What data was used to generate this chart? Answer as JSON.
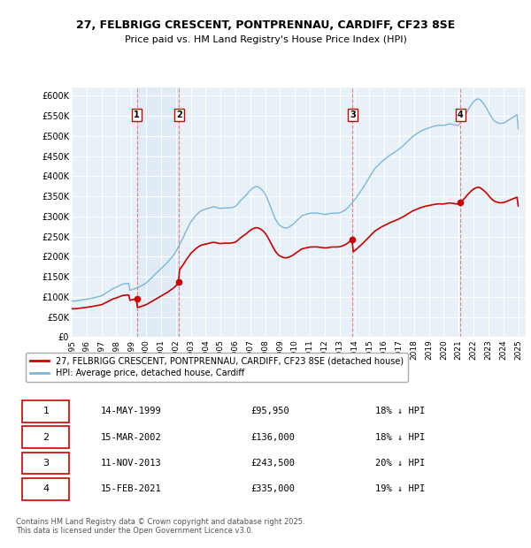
{
  "title_line1": "27, FELBRIGG CRESCENT, PONTPRENNAU, CARDIFF, CF23 8SE",
  "title_line2": "Price paid vs. HM Land Registry's House Price Index (HPI)",
  "price_paid_color": "#cc0000",
  "hpi_color": "#7ab8d9",
  "background_color": "#ffffff",
  "plot_bg_color": "#e8f0f8",
  "grid_color": "#ffffff",
  "vline_color": "#e88080",
  "ylim": [
    0,
    620000
  ],
  "yticks": [
    0,
    50000,
    100000,
    150000,
    200000,
    250000,
    300000,
    350000,
    400000,
    450000,
    500000,
    550000,
    600000
  ],
  "ytick_labels": [
    "£0",
    "£50K",
    "£100K",
    "£150K",
    "£200K",
    "£250K",
    "£300K",
    "£350K",
    "£400K",
    "£450K",
    "£500K",
    "£550K",
    "£600K"
  ],
  "legend_label_red": "27, FELBRIGG CRESCENT, PONTPRENNAU, CARDIFF, CF23 8SE (detached house)",
  "legend_label_blue": "HPI: Average price, detached house, Cardiff",
  "transactions": [
    {
      "num": 1,
      "date": "14-MAY-1999",
      "price": 95950,
      "pct": "18%",
      "dir": "↓",
      "year": 1999.37
    },
    {
      "num": 2,
      "date": "15-MAR-2002",
      "price": 136000,
      "pct": "18%",
      "dir": "↓",
      "year": 2002.21
    },
    {
      "num": 3,
      "date": "11-NOV-2013",
      "price": 243500,
      "pct": "20%",
      "dir": "↓",
      "year": 2013.87
    },
    {
      "num": 4,
      "date": "15-FEB-2021",
      "price": 335000,
      "pct": "19%",
      "dir": "↓",
      "year": 2021.12
    }
  ],
  "footer": "Contains HM Land Registry data © Crown copyright and database right 2025.\nThis data is licensed under the Open Government Licence v3.0.",
  "hpi_data": {
    "years": [
      1995.0,
      1995.083,
      1995.167,
      1995.25,
      1995.333,
      1995.417,
      1995.5,
      1995.583,
      1995.667,
      1995.75,
      1995.833,
      1995.917,
      1996.0,
      1996.083,
      1996.167,
      1996.25,
      1996.333,
      1996.417,
      1996.5,
      1996.583,
      1996.667,
      1996.75,
      1996.833,
      1996.917,
      1997.0,
      1997.083,
      1997.167,
      1997.25,
      1997.333,
      1997.417,
      1997.5,
      1997.583,
      1997.667,
      1997.75,
      1997.833,
      1997.917,
      1998.0,
      1998.083,
      1998.167,
      1998.25,
      1998.333,
      1998.417,
      1998.5,
      1998.583,
      1998.667,
      1998.75,
      1998.833,
      1998.917,
      1999.0,
      1999.083,
      1999.167,
      1999.25,
      1999.333,
      1999.417,
      1999.5,
      1999.583,
      1999.667,
      1999.75,
      1999.833,
      1999.917,
      2000.0,
      2000.083,
      2000.167,
      2000.25,
      2000.333,
      2000.417,
      2000.5,
      2000.583,
      2000.667,
      2000.75,
      2000.833,
      2000.917,
      2001.0,
      2001.083,
      2001.167,
      2001.25,
      2001.333,
      2001.417,
      2001.5,
      2001.583,
      2001.667,
      2001.75,
      2001.833,
      2001.917,
      2002.0,
      2002.083,
      2002.167,
      2002.25,
      2002.333,
      2002.417,
      2002.5,
      2002.583,
      2002.667,
      2002.75,
      2002.833,
      2002.917,
      2003.0,
      2003.083,
      2003.167,
      2003.25,
      2003.333,
      2003.417,
      2003.5,
      2003.583,
      2003.667,
      2003.75,
      2003.833,
      2003.917,
      2004.0,
      2004.083,
      2004.167,
      2004.25,
      2004.333,
      2004.417,
      2004.5,
      2004.583,
      2004.667,
      2004.75,
      2004.833,
      2004.917,
      2005.0,
      2005.083,
      2005.167,
      2005.25,
      2005.333,
      2005.417,
      2005.5,
      2005.583,
      2005.667,
      2005.75,
      2005.833,
      2005.917,
      2006.0,
      2006.083,
      2006.167,
      2006.25,
      2006.333,
      2006.417,
      2006.5,
      2006.583,
      2006.667,
      2006.75,
      2006.833,
      2006.917,
      2007.0,
      2007.083,
      2007.167,
      2007.25,
      2007.333,
      2007.417,
      2007.5,
      2007.583,
      2007.667,
      2007.75,
      2007.833,
      2007.917,
      2008.0,
      2008.083,
      2008.167,
      2008.25,
      2008.333,
      2008.417,
      2008.5,
      2008.583,
      2008.667,
      2008.75,
      2008.833,
      2008.917,
      2009.0,
      2009.083,
      2009.167,
      2009.25,
      2009.333,
      2009.417,
      2009.5,
      2009.583,
      2009.667,
      2009.75,
      2009.833,
      2009.917,
      2010.0,
      2010.083,
      2010.167,
      2010.25,
      2010.333,
      2010.417,
      2010.5,
      2010.583,
      2010.667,
      2010.75,
      2010.833,
      2010.917,
      2011.0,
      2011.083,
      2011.167,
      2011.25,
      2011.333,
      2011.417,
      2011.5,
      2011.583,
      2011.667,
      2011.75,
      2011.833,
      2011.917,
      2012.0,
      2012.083,
      2012.167,
      2012.25,
      2012.333,
      2012.417,
      2012.5,
      2012.583,
      2012.667,
      2012.75,
      2012.833,
      2012.917,
      2013.0,
      2013.083,
      2013.167,
      2013.25,
      2013.333,
      2013.417,
      2013.5,
      2013.583,
      2013.667,
      2013.75,
      2013.833,
      2013.917,
      2014.0,
      2014.083,
      2014.167,
      2014.25,
      2014.333,
      2014.417,
      2014.5,
      2014.583,
      2014.667,
      2014.75,
      2014.833,
      2014.917,
      2015.0,
      2015.083,
      2015.167,
      2015.25,
      2015.333,
      2015.417,
      2015.5,
      2015.583,
      2015.667,
      2015.75,
      2015.833,
      2015.917,
      2016.0,
      2016.083,
      2016.167,
      2016.25,
      2016.333,
      2016.417,
      2016.5,
      2016.583,
      2016.667,
      2016.75,
      2016.833,
      2016.917,
      2017.0,
      2017.083,
      2017.167,
      2017.25,
      2017.333,
      2017.417,
      2017.5,
      2017.583,
      2017.667,
      2017.75,
      2017.833,
      2017.917,
      2018.0,
      2018.083,
      2018.167,
      2018.25,
      2018.333,
      2018.417,
      2018.5,
      2018.583,
      2018.667,
      2018.75,
      2018.833,
      2018.917,
      2019.0,
      2019.083,
      2019.167,
      2019.25,
      2019.333,
      2019.417,
      2019.5,
      2019.583,
      2019.667,
      2019.75,
      2019.833,
      2019.917,
      2020.0,
      2020.083,
      2020.167,
      2020.25,
      2020.333,
      2020.417,
      2020.5,
      2020.583,
      2020.667,
      2020.75,
      2020.833,
      2020.917,
      2021.0,
      2021.083,
      2021.167,
      2021.25,
      2021.333,
      2021.417,
      2021.5,
      2021.583,
      2021.667,
      2021.75,
      2021.833,
      2021.917,
      2022.0,
      2022.083,
      2022.167,
      2022.25,
      2022.333,
      2022.417,
      2022.5,
      2022.583,
      2022.667,
      2022.75,
      2022.833,
      2022.917,
      2023.0,
      2023.083,
      2023.167,
      2023.25,
      2023.333,
      2023.417,
      2023.5,
      2023.583,
      2023.667,
      2023.75,
      2023.833,
      2023.917,
      2024.0,
      2024.083,
      2024.167,
      2024.25,
      2024.333,
      2024.417,
      2024.5,
      2024.583,
      2024.667,
      2024.75,
      2024.833,
      2024.917,
      2025.0
    ],
    "values": [
      90000,
      89500,
      89300,
      89600,
      90000,
      90500,
      91000,
      91500,
      92000,
      92500,
      93000,
      93500,
      94000,
      94500,
      95000,
      95800,
      96500,
      97000,
      97800,
      98500,
      99200,
      100000,
      100700,
      101500,
      102500,
      104000,
      106000,
      108000,
      110000,
      112000,
      114000,
      116000,
      118000,
      120000,
      121500,
      122500,
      124000,
      125500,
      127000,
      128500,
      130000,
      131500,
      132000,
      132500,
      133000,
      133200,
      133000,
      116000,
      117000,
      118000,
      119200,
      120500,
      121800,
      122800,
      124000,
      125500,
      127000,
      128500,
      130500,
      132500,
      134500,
      137000,
      140000,
      143000,
      146000,
      149000,
      152000,
      155000,
      158000,
      161000,
      164000,
      167000,
      170000,
      173000,
      176000,
      179000,
      182000,
      185000,
      188500,
      192000,
      195500,
      199000,
      203000,
      208000,
      213000,
      218000,
      224000,
      230000,
      236000,
      242000,
      248000,
      255000,
      262000,
      268000,
      274000,
      280000,
      286000,
      290000,
      294000,
      298000,
      302000,
      305000,
      308000,
      311000,
      313000,
      315000,
      316000,
      317000,
      318000,
      319000,
      320000,
      321000,
      322000,
      323000,
      324000,
      323500,
      323000,
      322000,
      321000,
      320000,
      320000,
      320200,
      320500,
      320800,
      321000,
      321000,
      321000,
      321000,
      321500,
      322000,
      322500,
      323500,
      325000,
      328000,
      331000,
      335000,
      339000,
      342000,
      345000,
      348000,
      351000,
      354000,
      358000,
      362000,
      365000,
      368000,
      370000,
      372000,
      373500,
      374000,
      373500,
      372000,
      370000,
      367000,
      364000,
      360000,
      355000,
      349000,
      342000,
      334000,
      326000,
      318000,
      310000,
      302000,
      295000,
      289000,
      284000,
      280000,
      277000,
      275000,
      273000,
      272000,
      271000,
      271000,
      272000,
      273000,
      275000,
      277000,
      279000,
      282000,
      285000,
      288000,
      291000,
      294000,
      297000,
      300000,
      302000,
      303000,
      304000,
      305000,
      306000,
      307000,
      307500,
      308000,
      308000,
      308200,
      308500,
      308500,
      308000,
      307500,
      307000,
      306500,
      306000,
      305500,
      305000,
      305000,
      305500,
      306000,
      307000,
      307500,
      308000,
      308000,
      308000,
      308000,
      308000,
      308500,
      309000,
      310000,
      311500,
      313000,
      315000,
      317000,
      320000,
      323000,
      326500,
      330000,
      333500,
      337000,
      341000,
      345000,
      349000,
      354000,
      358000,
      362500,
      367000,
      372000,
      377000,
      382000,
      387000,
      392000,
      397000,
      402000,
      407000,
      412000,
      417000,
      421000,
      424000,
      427000,
      430000,
      433000,
      436000,
      438500,
      441000,
      443500,
      446000,
      448500,
      451000,
      453000,
      455000,
      457000,
      459000,
      461000,
      463000,
      465000,
      467500,
      470000,
      472500,
      475000,
      478000,
      481000,
      484000,
      487000,
      490000,
      493000,
      496000,
      499000,
      501000,
      503000,
      505000,
      507000,
      509000,
      511000,
      512500,
      514000,
      515500,
      517000,
      518000,
      519000,
      520000,
      521000,
      522000,
      523000,
      524000,
      525000,
      525500,
      526000,
      526500,
      526500,
      526000,
      526000,
      526500,
      527000,
      528000,
      529000,
      529500,
      530000,
      529500,
      529000,
      528000,
      527000,
      526500,
      526000,
      527000,
      531000,
      535000,
      540000,
      545000,
      550000,
      556000,
      562000,
      567000,
      572000,
      577000,
      582000,
      585000,
      588000,
      590000,
      591500,
      592000,
      591000,
      588000,
      584000,
      580000,
      576000,
      571000,
      566000,
      560000,
      554000,
      549000,
      544000,
      540000,
      537000,
      535000,
      533000,
      532000,
      531000,
      531000,
      531500,
      532000,
      533000,
      535000,
      537000,
      539000,
      541000,
      543000,
      545000,
      547000,
      549000,
      551000,
      553000,
      518000
    ]
  },
  "xlim": [
    1995.0,
    2025.5
  ],
  "xtick_years": [
    1995,
    1996,
    1997,
    1998,
    1999,
    2000,
    2001,
    2002,
    2003,
    2004,
    2005,
    2006,
    2007,
    2008,
    2009,
    2010,
    2011,
    2012,
    2013,
    2014,
    2015,
    2016,
    2017,
    2018,
    2019,
    2020,
    2021,
    2022,
    2023,
    2024,
    2025
  ]
}
